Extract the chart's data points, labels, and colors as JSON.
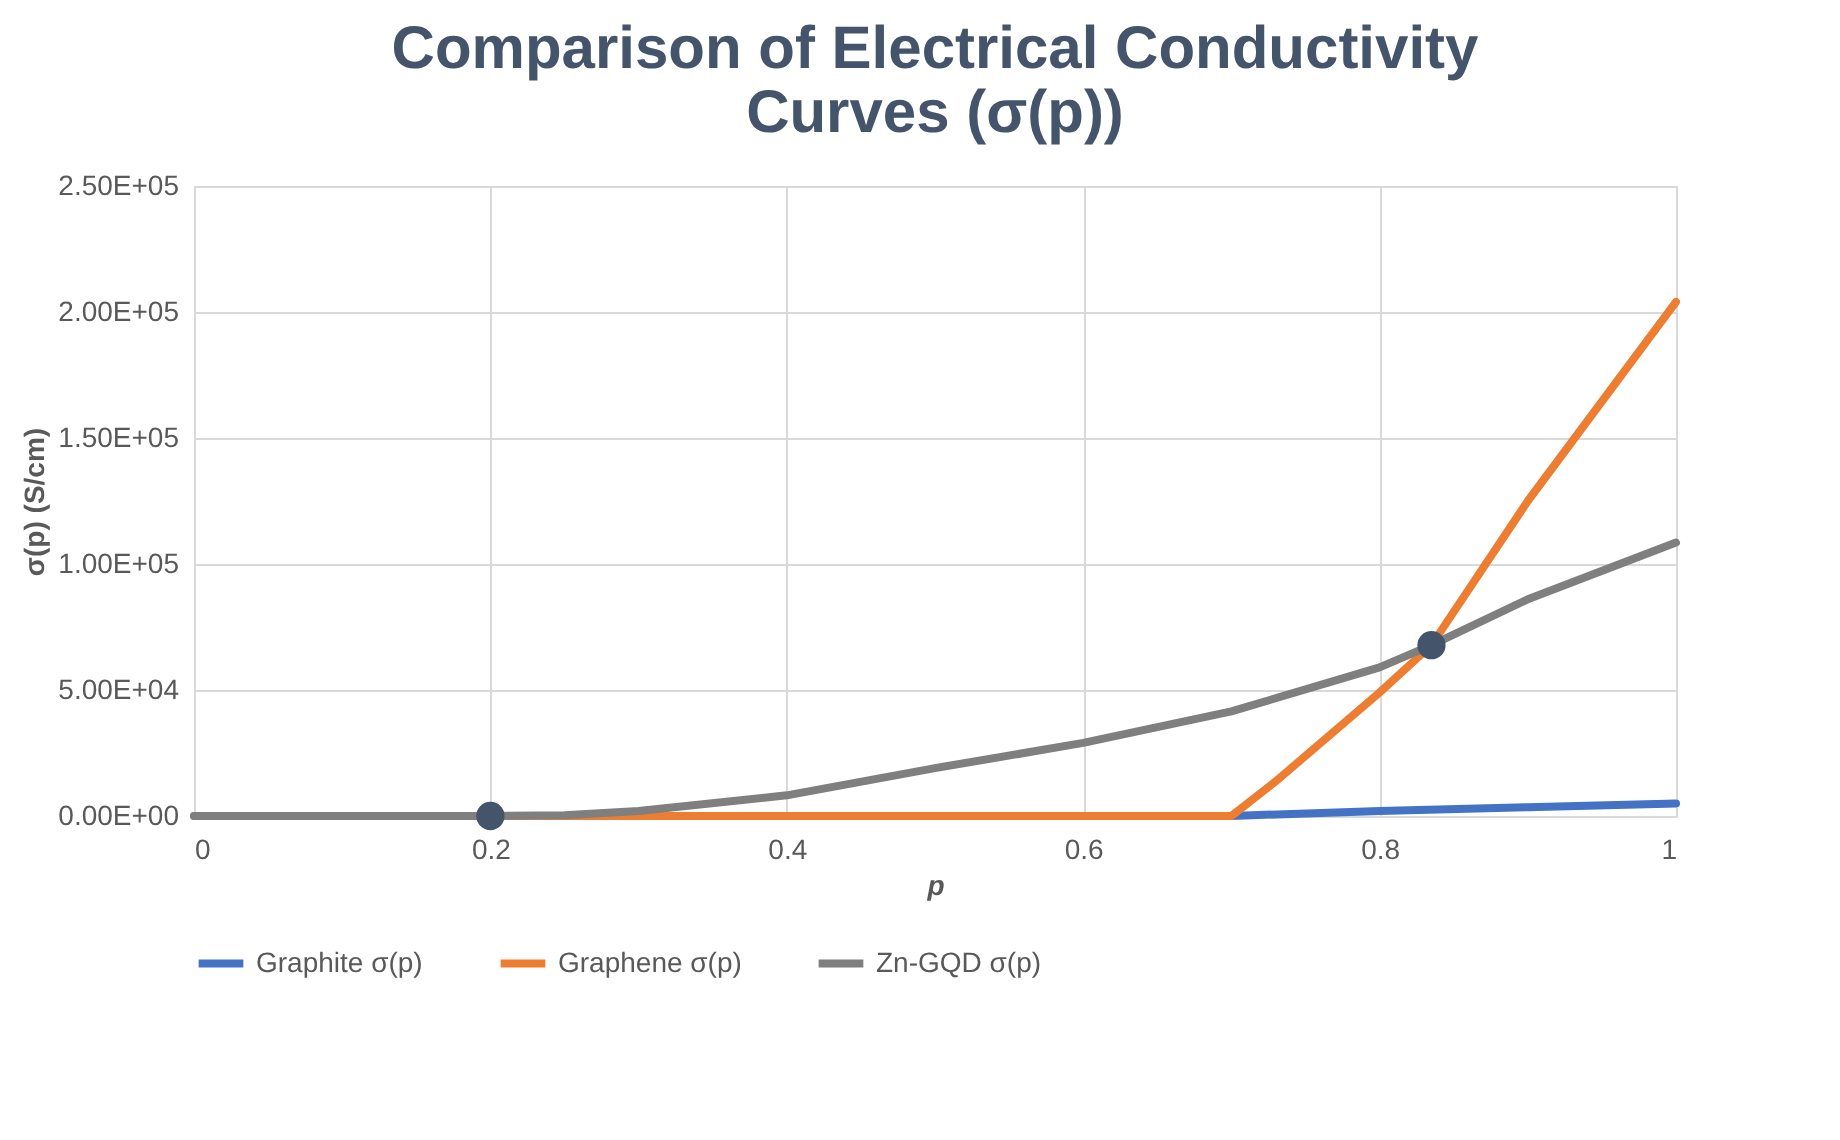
{
  "chart_data": {
    "type": "line",
    "title": [
      "Comparison of Electrical Conductivity",
      "Curves (σ(p))"
    ],
    "xlabel": "p",
    "ylabel": "σ(p)  (S/cm)",
    "xlim": [
      0,
      1
    ],
    "xticks": [
      0,
      0.2,
      0.4,
      0.6,
      0.8,
      1
    ],
    "ylim": [
      0,
      250000
    ],
    "yticks": [
      {
        "value": 0,
        "label": "0.00E+00"
      },
      {
        "value": 50000,
        "label": "5.00E+04"
      },
      {
        "value": 100000,
        "label": "1.00E+05"
      },
      {
        "value": 150000,
        "label": "1.50E+05"
      },
      {
        "value": 200000,
        "label": "2.00E+05"
      },
      {
        "value": 250000,
        "label": "2.50E+05"
      }
    ],
    "grid": true,
    "legend": "bottom",
    "marker": "none",
    "line_style": "solid",
    "series": [
      {
        "name": "Graphite σ(p)",
        "color": "#4472c4",
        "x": [
          0.7,
          0.8,
          0.9,
          1
        ],
        "values": [
          0,
          2000,
          3500,
          5000
        ]
      },
      {
        "name": "Graphene σ(p)",
        "color": "#ed7d31",
        "x": [
          0,
          0.1,
          0.2,
          0.3,
          0.4,
          0.5,
          0.6,
          0.7,
          0.73,
          0.8,
          0.835,
          0.9,
          1
        ],
        "values": [
          0,
          0,
          0,
          0,
          0,
          0,
          0,
          0,
          13800,
          49000,
          67800,
          125000,
          204000
        ]
      },
      {
        "name": "Zn-GQD σ(p)",
        "color": "#7f7f7f",
        "x": [
          0,
          0.1,
          0.2,
          0.25,
          0.3,
          0.4,
          0.5,
          0.6,
          0.7,
          0.8,
          0.835,
          0.9,
          1
        ],
        "values": [
          0,
          0,
          0,
          300,
          2000,
          8200,
          19000,
          29000,
          41500,
          59000,
          67800,
          86000,
          108500
        ]
      },
      {
        "type": "scatter",
        "marker": "circle",
        "color": "#44546a",
        "x": [
          0.2,
          0.835
        ],
        "values": [
          0,
          67800
        ]
      }
    ]
  }
}
